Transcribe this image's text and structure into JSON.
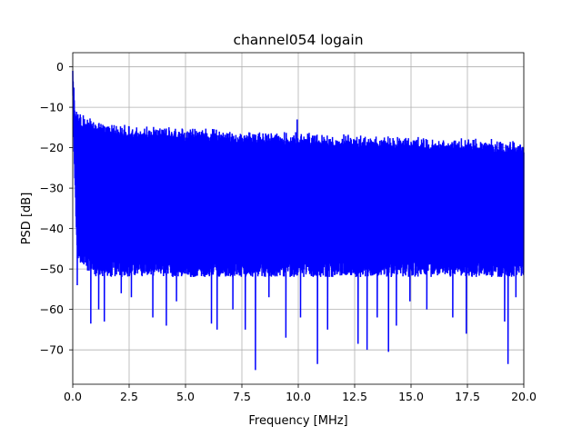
{
  "chart_data": {
    "type": "line",
    "title": "channel054 logain",
    "xlabel": "Frequency [MHz]",
    "ylabel": "PSD [dB]",
    "xlim": [
      0,
      20
    ],
    "ylim": [
      -78.5,
      3.5
    ],
    "xticks": [
      0,
      2.5,
      5,
      7.5,
      10,
      12.5,
      15,
      17.5,
      20
    ],
    "xtick_labels": [
      "0.0",
      "2.5",
      "5.0",
      "7.5",
      "10.0",
      "12.5",
      "15.0",
      "17.5",
      "20.0"
    ],
    "yticks": [
      0,
      -10,
      -20,
      -30,
      -40,
      -50,
      -60,
      -70
    ],
    "ytick_labels": [
      "0",
      "−10",
      "−20",
      "−30",
      "−40",
      "−50",
      "−60",
      "−70"
    ],
    "grid": true,
    "series": [
      {
        "color": "#0000ff",
        "envelope": {
          "x": [
            0,
            0.1,
            0.2,
            0.5,
            1,
            2,
            3,
            4,
            5,
            6,
            7,
            8,
            9,
            10,
            11,
            12,
            13,
            14,
            15,
            16,
            17,
            18,
            19,
            20
          ],
          "upper": [
            -1,
            -9,
            -11,
            -12,
            -13,
            -14,
            -14.5,
            -14.5,
            -15,
            -15,
            -15.5,
            -15.5,
            -16,
            -16,
            -16.5,
            -16.5,
            -17,
            -17,
            -17,
            -17.5,
            -17.5,
            -17.5,
            -18,
            -18
          ],
          "lower_typical": [
            -5,
            -30,
            -45,
            -48,
            -50,
            -50,
            -50,
            -50,
            -50,
            -50,
            -50,
            -50,
            -50,
            -50,
            -50,
            -50,
            -50,
            -50,
            -50,
            -50,
            -50,
            -50,
            -50,
            -50
          ]
        },
        "notable_peaks": [
          {
            "x": 0.0,
            "y": -1
          },
          {
            "x": 9.95,
            "y": -13
          }
        ],
        "notable_dips": [
          {
            "x": 0.2,
            "y": -54
          },
          {
            "x": 0.8,
            "y": -63.5
          },
          {
            "x": 1.15,
            "y": -60
          },
          {
            "x": 1.4,
            "y": -63
          },
          {
            "x": 2.15,
            "y": -56
          },
          {
            "x": 2.6,
            "y": -57
          },
          {
            "x": 3.55,
            "y": -62
          },
          {
            "x": 4.15,
            "y": -64
          },
          {
            "x": 4.6,
            "y": -58
          },
          {
            "x": 6.15,
            "y": -63.5
          },
          {
            "x": 6.4,
            "y": -65
          },
          {
            "x": 7.1,
            "y": -60
          },
          {
            "x": 7.65,
            "y": -65
          },
          {
            "x": 8.1,
            "y": -75
          },
          {
            "x": 8.7,
            "y": -57
          },
          {
            "x": 9.45,
            "y": -67
          },
          {
            "x": 10.1,
            "y": -62
          },
          {
            "x": 10.85,
            "y": -73.5
          },
          {
            "x": 11.3,
            "y": -65
          },
          {
            "x": 12.65,
            "y": -68.5
          },
          {
            "x": 13.05,
            "y": -70
          },
          {
            "x": 13.5,
            "y": -62
          },
          {
            "x": 14.0,
            "y": -70.5
          },
          {
            "x": 14.35,
            "y": -64
          },
          {
            "x": 14.95,
            "y": -58
          },
          {
            "x": 15.7,
            "y": -60
          },
          {
            "x": 16.85,
            "y": -62
          },
          {
            "x": 17.45,
            "y": -66
          },
          {
            "x": 19.15,
            "y": -63
          },
          {
            "x": 19.3,
            "y": -73.5
          },
          {
            "x": 19.65,
            "y": -57
          }
        ]
      }
    ]
  }
}
